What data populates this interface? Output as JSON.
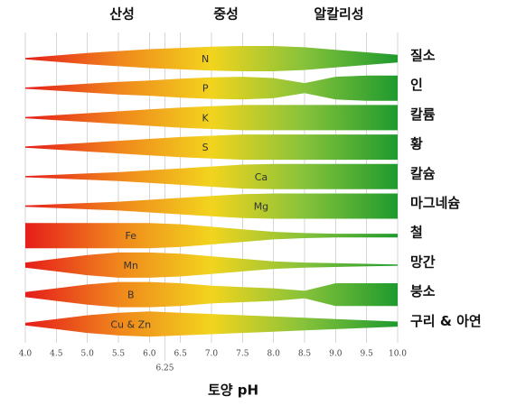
{
  "chart_data": {
    "type": "band",
    "annotations": [
      "산성",
      "중성",
      "알칼리성"
    ],
    "xlabel": "토양 pH",
    "x": [
      4.0,
      4.5,
      5.0,
      5.5,
      6.0,
      6.5,
      7.0,
      7.5,
      8.0,
      8.5,
      9.0,
      9.5,
      10.0
    ],
    "xlim": [
      4.0,
      10.0
    ],
    "xticks": [
      {
        "value": 4,
        "label": "4.0"
      },
      4.5,
      {
        "value": 5,
        "label": "5.0"
      },
      5.5,
      {
        "value": 6,
        "label": "6.0"
      },
      6.5,
      {
        "value": 7,
        "label": "7.0"
      },
      7.5,
      {
        "value": 8,
        "label": "8.0"
      },
      8.5,
      {
        "value": 9,
        "label": "9.0"
      },
      9.5,
      {
        "value": 10,
        "label": "10.0"
      },
      6.25
    ],
    "color_scale": [
      "#e51d1a",
      "#f0861c",
      "#f2d41e",
      "#86c23a",
      "#1f9a2e"
    ],
    "series": [
      {
        "name": "질소",
        "symbol": "N",
        "values": [
          0.05,
          0.25,
          0.45,
          0.6,
          0.75,
          0.85,
          0.95,
          1,
          1,
          0.9,
          0.7,
          0.5,
          0.3
        ]
      },
      {
        "name": "인",
        "symbol": "P",
        "values": [
          0.05,
          0.2,
          0.35,
          0.5,
          0.6,
          0.75,
          0.85,
          0.9,
          0.8,
          0.4,
          0.9,
          1,
          1
        ]
      },
      {
        "name": "칼륨",
        "symbol": "K",
        "values": [
          0.05,
          0.2,
          0.35,
          0.5,
          0.65,
          0.8,
          0.9,
          1,
          1,
          1,
          1,
          1,
          1
        ]
      },
      {
        "name": "황",
        "symbol": "S",
        "values": [
          0.05,
          0.2,
          0.35,
          0.5,
          0.65,
          0.8,
          0.9,
          1,
          1,
          1,
          1,
          1,
          1
        ]
      },
      {
        "name": "칼슘",
        "symbol": "Ca",
        "values": [
          0.05,
          0.15,
          0.25,
          0.35,
          0.5,
          0.65,
          0.8,
          0.95,
          1,
          1,
          1,
          1,
          1
        ]
      },
      {
        "name": "마그네슘",
        "symbol": "Mg",
        "values": [
          0.05,
          0.15,
          0.25,
          0.35,
          0.5,
          0.65,
          0.8,
          0.95,
          1,
          1,
          1,
          1,
          1
        ]
      },
      {
        "name": "철",
        "symbol": "Fe",
        "values": [
          1,
          1,
          1,
          1,
          1,
          0.9,
          0.7,
          0.5,
          0.3,
          0.2,
          0.15,
          0.15,
          0.15
        ]
      },
      {
        "name": "망간",
        "symbol": "Mn",
        "values": [
          0.2,
          0.5,
          0.8,
          1,
          1,
          0.9,
          0.7,
          0.5,
          0.3,
          0.2,
          0.15,
          0.1,
          0.05
        ]
      },
      {
        "name": "붕소",
        "symbol": "B",
        "values": [
          0.2,
          0.5,
          0.8,
          1,
          1,
          0.9,
          0.7,
          0.6,
          0.5,
          0.3,
          0.9,
          0.9,
          0.9
        ]
      },
      {
        "name": "구리 & 아연",
        "symbol": "Cu & Zn",
        "values": [
          0.1,
          0.4,
          0.7,
          0.9,
          1,
          0.9,
          0.8,
          0.7,
          0.6,
          0.5,
          0.4,
          0.3,
          0.2
        ]
      }
    ]
  }
}
